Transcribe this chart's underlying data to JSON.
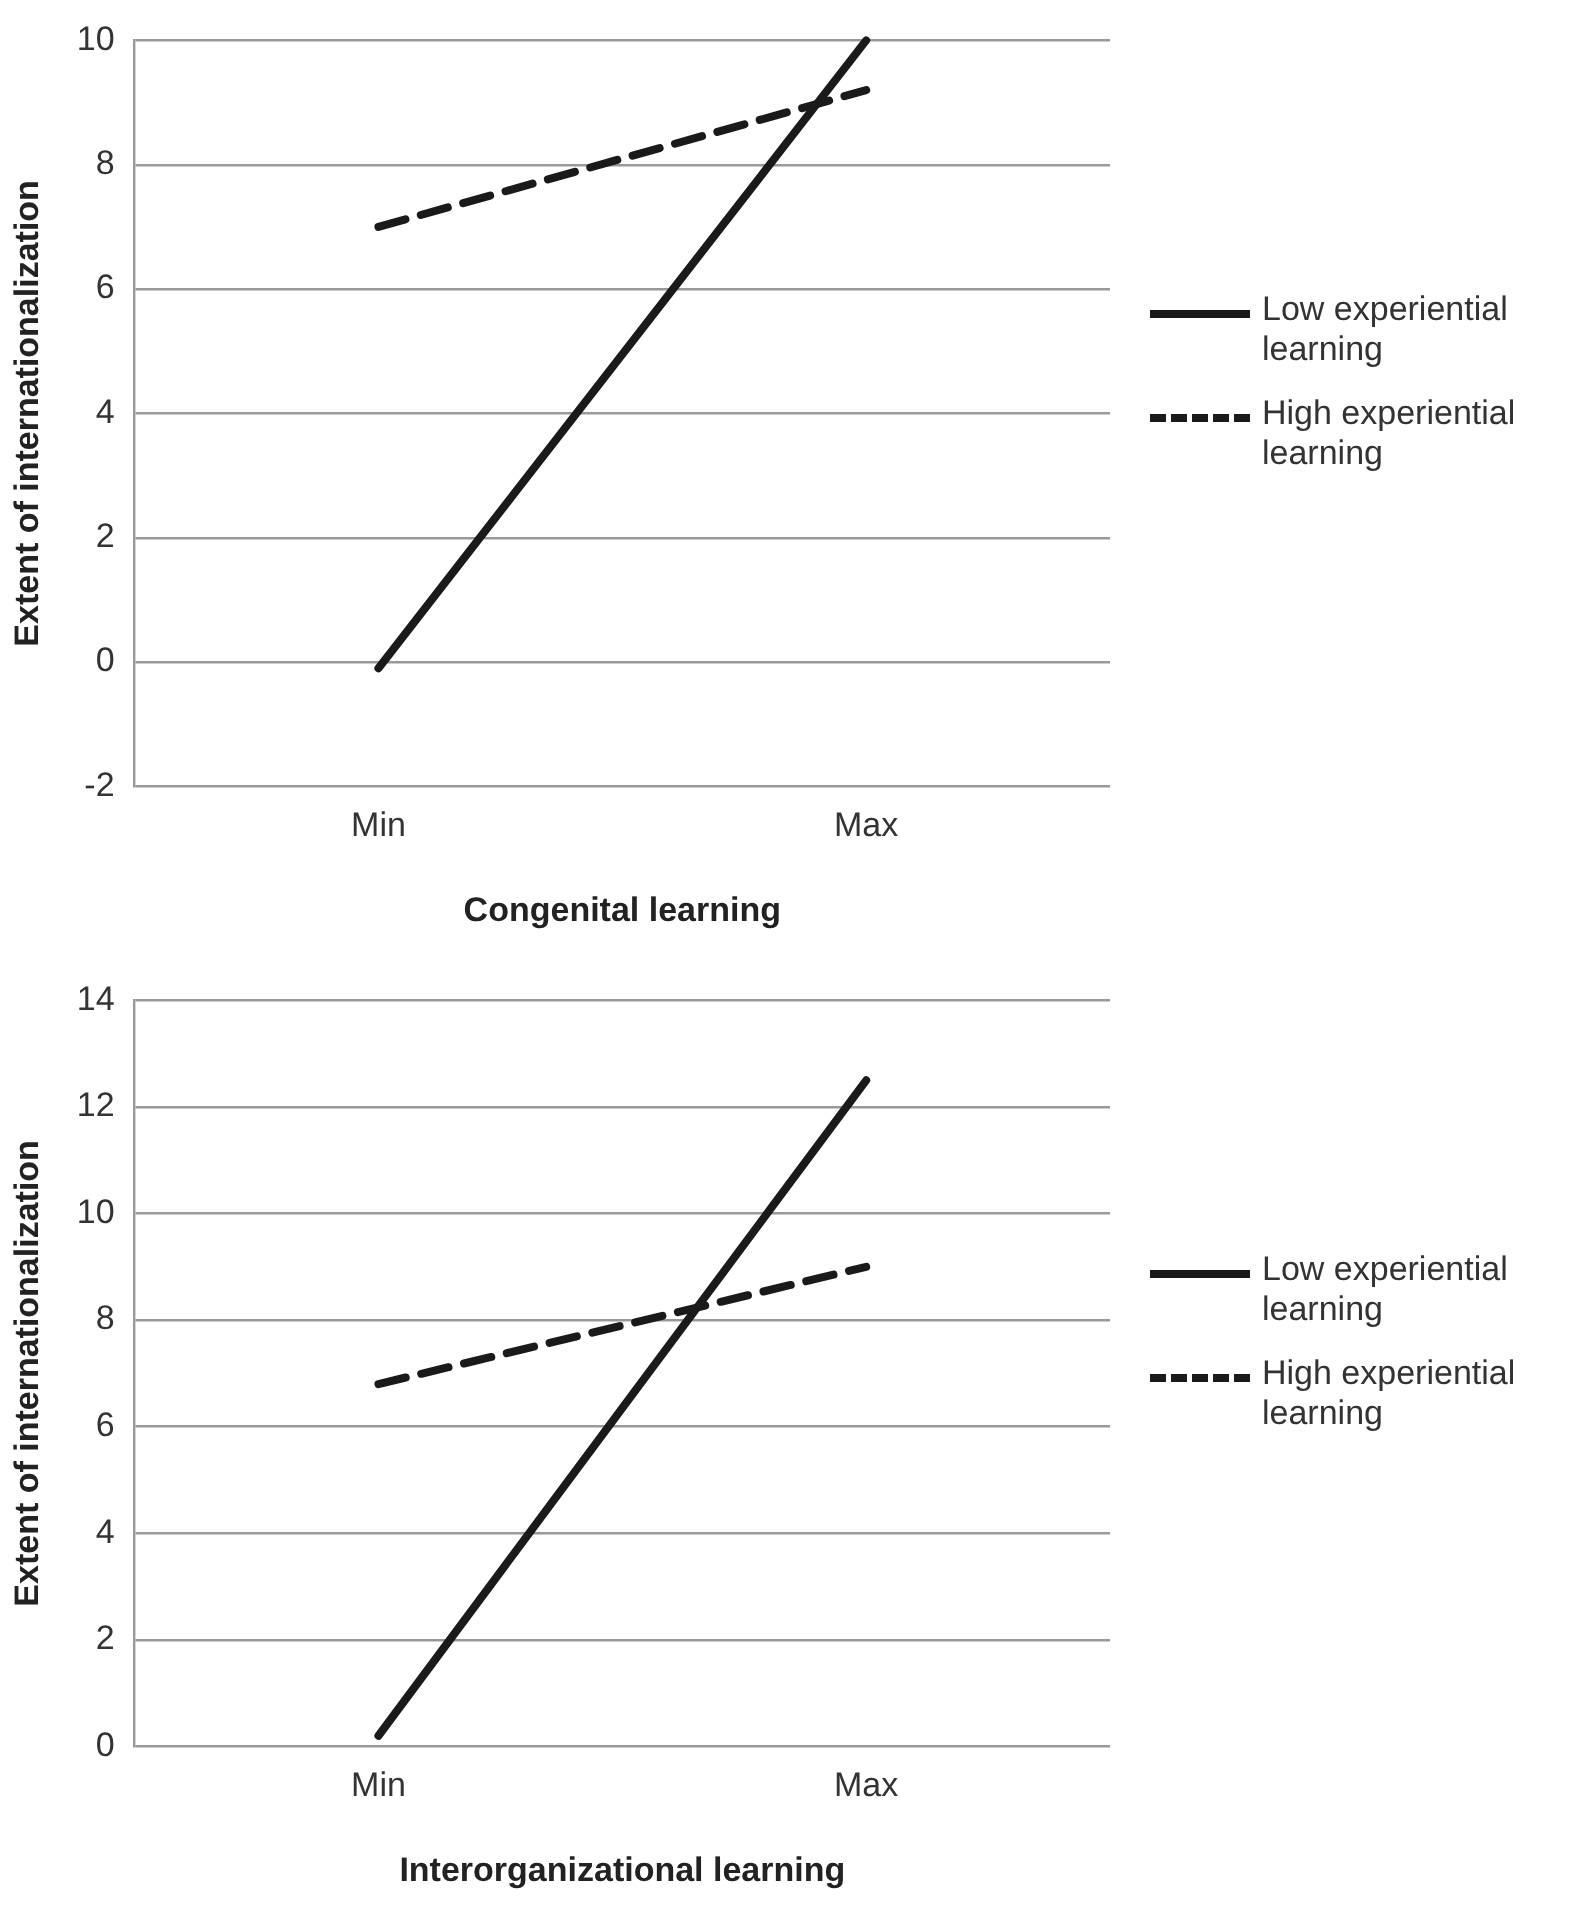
{
  "chart_data": [
    {
      "type": "line",
      "xlabel": "Congenital learning",
      "ylabel": "Extent of internationalization",
      "categories": [
        "Min",
        "Max"
      ],
      "series": [
        {
          "name": "Low experiential learning",
          "color": "#1a1a1a",
          "line_style": "solid",
          "values": [
            -0.1,
            10
          ]
        },
        {
          "name": "High experiential learning",
          "color": "#1a1a1a",
          "line_style": "dashed",
          "values": [
            7.0,
            9.2
          ]
        }
      ],
      "ylim": [
        -2,
        10
      ],
      "yticks": [
        -2,
        0,
        2,
        4,
        6,
        8,
        10
      ],
      "grid": "y",
      "legend": "right",
      "marker": "none"
    },
    {
      "type": "line",
      "xlabel": "Interorganizational learning",
      "ylabel": "Extent of internationalization",
      "categories": [
        "Min",
        "Max"
      ],
      "series": [
        {
          "name": "Low experiential learning",
          "color": "#1a1a1a",
          "line_style": "solid",
          "values": [
            0.2,
            12.5
          ]
        },
        {
          "name": "High experiential learning",
          "color": "#1a1a1a",
          "line_style": "dashed",
          "values": [
            6.8,
            9.0
          ]
        }
      ],
      "ylim": [
        0,
        14
      ],
      "yticks": [
        0,
        2,
        4,
        6,
        8,
        10,
        12,
        14
      ],
      "grid": "y",
      "legend": "right",
      "marker": "none"
    }
  ]
}
